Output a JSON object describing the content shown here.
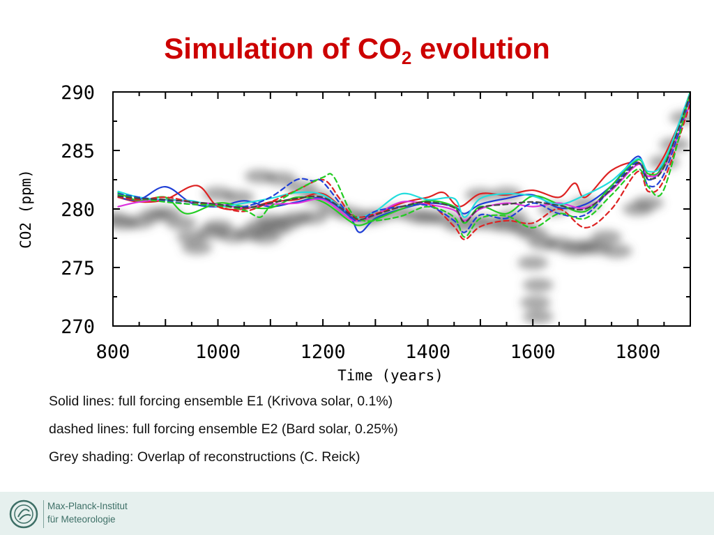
{
  "title": {
    "main": "Simulation of CO",
    "sub": "2",
    "tail": " evolution"
  },
  "captions": [
    "Solid lines: full forcing ensemble E1 (Krivova solar, 0.1%)",
    "dashed lines: full forcing ensemble E2 (Bard solar, 0.25%)",
    "Grey shading: Overlap of reconstructions (C. Reick)"
  ],
  "footer": {
    "line1": "Max-Planck-Institut",
    "line2": "für Meteorologie"
  },
  "chart_data": {
    "type": "line",
    "xlabel": "Time (years)",
    "ylabel": "CO2 (ppm)",
    "xlim": [
      800,
      1900
    ],
    "ylim": [
      270,
      290
    ],
    "xticks": [
      800,
      1000,
      1200,
      1400,
      1600,
      1800
    ],
    "yticks": [
      270,
      275,
      280,
      285,
      290
    ],
    "grid": false,
    "series": [
      {
        "style": "solid",
        "color": "#dd2222",
        "x": [
          810,
          850,
          900,
          960,
          1000,
          1050,
          1100,
          1150,
          1200,
          1250,
          1270,
          1300,
          1350,
          1400,
          1430,
          1460,
          1500,
          1550,
          1600,
          1650,
          1680,
          1700,
          1750,
          1800,
          1820,
          1850,
          1900
        ],
        "y": [
          281.0,
          280.6,
          280.8,
          282.0,
          280.2,
          280.0,
          280.6,
          280.8,
          281.3,
          279.5,
          279.0,
          279.5,
          280.5,
          281.0,
          281.4,
          280.2,
          281.3,
          281.2,
          281.6,
          281.0,
          282.2,
          281.0,
          283.3,
          284.0,
          282.8,
          284.5,
          289.5
        ]
      },
      {
        "style": "solid",
        "color": "#1f3fd6",
        "x": [
          810,
          850,
          900,
          950,
          1000,
          1050,
          1100,
          1150,
          1200,
          1250,
          1270,
          1300,
          1350,
          1400,
          1450,
          1470,
          1500,
          1550,
          1600,
          1650,
          1700,
          1750,
          1800,
          1820,
          1850,
          1900
        ],
        "y": [
          281.0,
          280.8,
          281.9,
          280.5,
          280.2,
          280.7,
          280.2,
          280.6,
          280.9,
          279.4,
          278.0,
          279.2,
          280.0,
          280.5,
          280.2,
          279.6,
          280.4,
          280.9,
          281.2,
          280.1,
          280.4,
          282.0,
          284.5,
          282.5,
          284.0,
          290.0
        ]
      },
      {
        "style": "solid",
        "color": "#22cc22",
        "x": [
          810,
          850,
          900,
          940,
          1000,
          1050,
          1100,
          1150,
          1200,
          1250,
          1270,
          1300,
          1350,
          1400,
          1450,
          1470,
          1500,
          1550,
          1600,
          1650,
          1700,
          1750,
          1800,
          1820,
          1850,
          1900
        ],
        "y": [
          281.4,
          280.7,
          281.0,
          279.6,
          280.5,
          280.2,
          280.1,
          281.0,
          280.6,
          279.0,
          278.6,
          279.1,
          280.0,
          280.7,
          280.2,
          278.8,
          280.2,
          279.6,
          281.1,
          280.4,
          279.8,
          282.0,
          284.2,
          283.0,
          283.8,
          290.0
        ]
      },
      {
        "style": "solid",
        "color": "#dd33dd",
        "x": [
          810,
          850,
          900,
          950,
          1000,
          1050,
          1100,
          1150,
          1200,
          1250,
          1270,
          1300,
          1350,
          1400,
          1450,
          1470,
          1500,
          1550,
          1600,
          1650,
          1700,
          1750,
          1800,
          1820,
          1850,
          1900
        ],
        "y": [
          280.2,
          280.6,
          280.8,
          280.6,
          280.4,
          280.1,
          280.4,
          280.5,
          280.8,
          279.2,
          279.0,
          279.5,
          280.6,
          280.4,
          279.9,
          279.0,
          280.0,
          280.5,
          280.2,
          280.5,
          280.1,
          281.6,
          283.8,
          282.8,
          283.6,
          289.0
        ]
      },
      {
        "style": "solid",
        "color": "#22dddd",
        "x": [
          810,
          850,
          900,
          950,
          1000,
          1050,
          1100,
          1150,
          1200,
          1250,
          1270,
          1300,
          1350,
          1400,
          1450,
          1470,
          1500,
          1550,
          1600,
          1650,
          1700,
          1750,
          1800,
          1820,
          1850,
          1900
        ],
        "y": [
          281.5,
          281.0,
          280.8,
          280.7,
          280.2,
          280.5,
          280.9,
          281.4,
          281.2,
          279.6,
          279.3,
          279.8,
          281.3,
          280.8,
          280.9,
          279.3,
          280.9,
          281.3,
          281.1,
          280.4,
          281.2,
          282.4,
          284.3,
          283.2,
          284.1,
          290.0
        ]
      },
      {
        "style": "dashed",
        "color": "#dd2222",
        "x": [
          810,
          850,
          900,
          950,
          1000,
          1050,
          1100,
          1150,
          1200,
          1230,
          1250,
          1270,
          1300,
          1350,
          1400,
          1450,
          1470,
          1500,
          1550,
          1600,
          1650,
          1700,
          1750,
          1800,
          1820,
          1850,
          1900
        ],
        "y": [
          281.0,
          280.8,
          281.0,
          280.6,
          280.2,
          279.8,
          280.6,
          281.6,
          282.5,
          281.0,
          279.7,
          279.3,
          279.6,
          280.2,
          280.5,
          278.5,
          277.4,
          278.5,
          279.0,
          278.8,
          280.0,
          278.4,
          280.0,
          283.2,
          281.5,
          282.5,
          289.0
        ]
      },
      {
        "style": "dashed",
        "color": "#1f3fd6",
        "x": [
          810,
          850,
          900,
          950,
          1000,
          1050,
          1100,
          1150,
          1180,
          1200,
          1250,
          1270,
          1300,
          1350,
          1400,
          1450,
          1470,
          1500,
          1550,
          1600,
          1650,
          1700,
          1750,
          1800,
          1820,
          1850,
          1900
        ],
        "y": [
          281.3,
          281.0,
          280.7,
          280.4,
          280.3,
          280.2,
          281.0,
          282.5,
          282.4,
          282.3,
          279.5,
          279.0,
          279.8,
          280.2,
          280.3,
          279.0,
          278.0,
          279.5,
          279.2,
          280.5,
          279.6,
          279.5,
          281.8,
          284.0,
          282.0,
          283.0,
          289.5
        ]
      },
      {
        "style": "dashed",
        "color": "#22cc22",
        "x": [
          810,
          850,
          900,
          950,
          1000,
          1050,
          1080,
          1100,
          1150,
          1200,
          1220,
          1250,
          1270,
          1300,
          1350,
          1400,
          1450,
          1470,
          1500,
          1550,
          1600,
          1650,
          1700,
          1750,
          1800,
          1820,
          1850,
          1900
        ],
        "y": [
          281.2,
          280.9,
          280.6,
          280.4,
          280.3,
          279.9,
          279.3,
          280.2,
          281.6,
          282.7,
          282.8,
          280.0,
          279.1,
          279.0,
          279.4,
          280.2,
          279.3,
          277.6,
          279.2,
          279.4,
          278.4,
          279.6,
          279.2,
          281.2,
          283.4,
          281.9,
          281.7,
          290.0
        ]
      },
      {
        "style": "dashed",
        "color": "#444444",
        "x": [
          810,
          850,
          900,
          950,
          1000,
          1050,
          1100,
          1150,
          1200,
          1250,
          1270,
          1300,
          1350,
          1400,
          1450,
          1470,
          1500,
          1550,
          1600,
          1650,
          1700,
          1750,
          1800,
          1820,
          1850,
          1900
        ],
        "y": [
          281.1,
          280.9,
          280.8,
          280.6,
          280.4,
          280.1,
          280.5,
          280.9,
          281.0,
          279.6,
          279.1,
          279.5,
          280.2,
          280.6,
          280.1,
          278.9,
          280.1,
          280.4,
          280.6,
          280.3,
          280.0,
          281.7,
          283.9,
          282.6,
          283.6,
          289.8
        ]
      }
    ],
    "shading": {
      "color": "#606060",
      "blobs": [
        [
          800,
          279.2
        ],
        [
          820,
          278.8
        ],
        [
          850,
          278.9
        ],
        [
          880,
          279.5
        ],
        [
          900,
          279.6
        ],
        [
          930,
          278.8
        ],
        [
          950,
          277.6
        ],
        [
          960,
          276.7
        ],
        [
          990,
          278.0
        ],
        [
          1000,
          278.5
        ],
        [
          1030,
          277.7
        ],
        [
          1060,
          277.9
        ],
        [
          1080,
          278.5
        ],
        [
          1100,
          279.0
        ],
        [
          1110,
          278.3
        ],
        [
          1090,
          277.6
        ],
        [
          1130,
          278.8
        ],
        [
          1150,
          279.2
        ],
        [
          1180,
          279.3
        ],
        [
          1220,
          280.0
        ],
        [
          1250,
          279.6
        ],
        [
          1280,
          279.2
        ],
        [
          1300,
          279.4
        ],
        [
          1340,
          279.7
        ],
        [
          1380,
          279.4
        ],
        [
          1400,
          279.3
        ],
        [
          1430,
          279.2
        ],
        [
          1460,
          278.6
        ],
        [
          1490,
          278.9
        ],
        [
          1520,
          278.8
        ],
        [
          1550,
          278.6
        ],
        [
          1580,
          278.4
        ],
        [
          1600,
          277.9
        ],
        [
          1620,
          277.1
        ],
        [
          1650,
          277.0
        ],
        [
          1680,
          276.6
        ],
        [
          1700,
          276.8
        ],
        [
          1720,
          276.7
        ],
        [
          1740,
          277.6
        ],
        [
          1760,
          276.4
        ],
        [
          1800,
          280.0
        ],
        [
          1820,
          280.5
        ],
        [
          1850,
          284.0
        ],
        [
          1870,
          285.5
        ],
        [
          1890,
          287.8
        ],
        [
          1080,
          282.8
        ],
        [
          1120,
          282.6
        ],
        [
          1160,
          281.8
        ],
        [
          1190,
          281.0
        ],
        [
          1000,
          281.3
        ],
        [
          1040,
          281.0
        ],
        [
          1500,
          281.2
        ],
        [
          1550,
          281.3
        ],
        [
          1560,
          279.3
        ],
        [
          1600,
          275.4
        ],
        [
          1610,
          273.5
        ],
        [
          1605,
          272.0
        ],
        [
          1610,
          270.8
        ],
        [
          1640,
          280.0
        ],
        [
          1700,
          280.4
        ]
      ]
    }
  }
}
